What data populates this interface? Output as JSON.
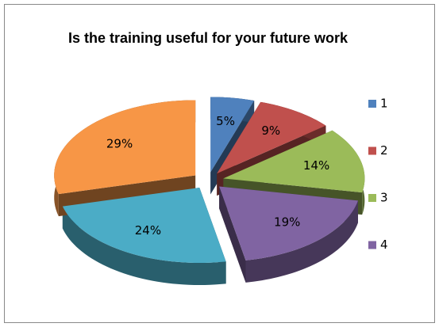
{
  "chart_data": {
    "type": "pie",
    "title": "Is the training useful for your future work",
    "categories": [
      "1",
      "2",
      "3",
      "4",
      null,
      null
    ],
    "values": [
      5,
      9,
      14,
      19,
      24,
      29
    ],
    "value_labels": [
      "5%",
      "9%",
      "14%",
      "19%",
      "24%",
      "29%"
    ],
    "colors": [
      "#4f81bd",
      "#c0504d",
      "#9bbb59",
      "#8064a2",
      "#4bacc6",
      "#f79646"
    ]
  }
}
